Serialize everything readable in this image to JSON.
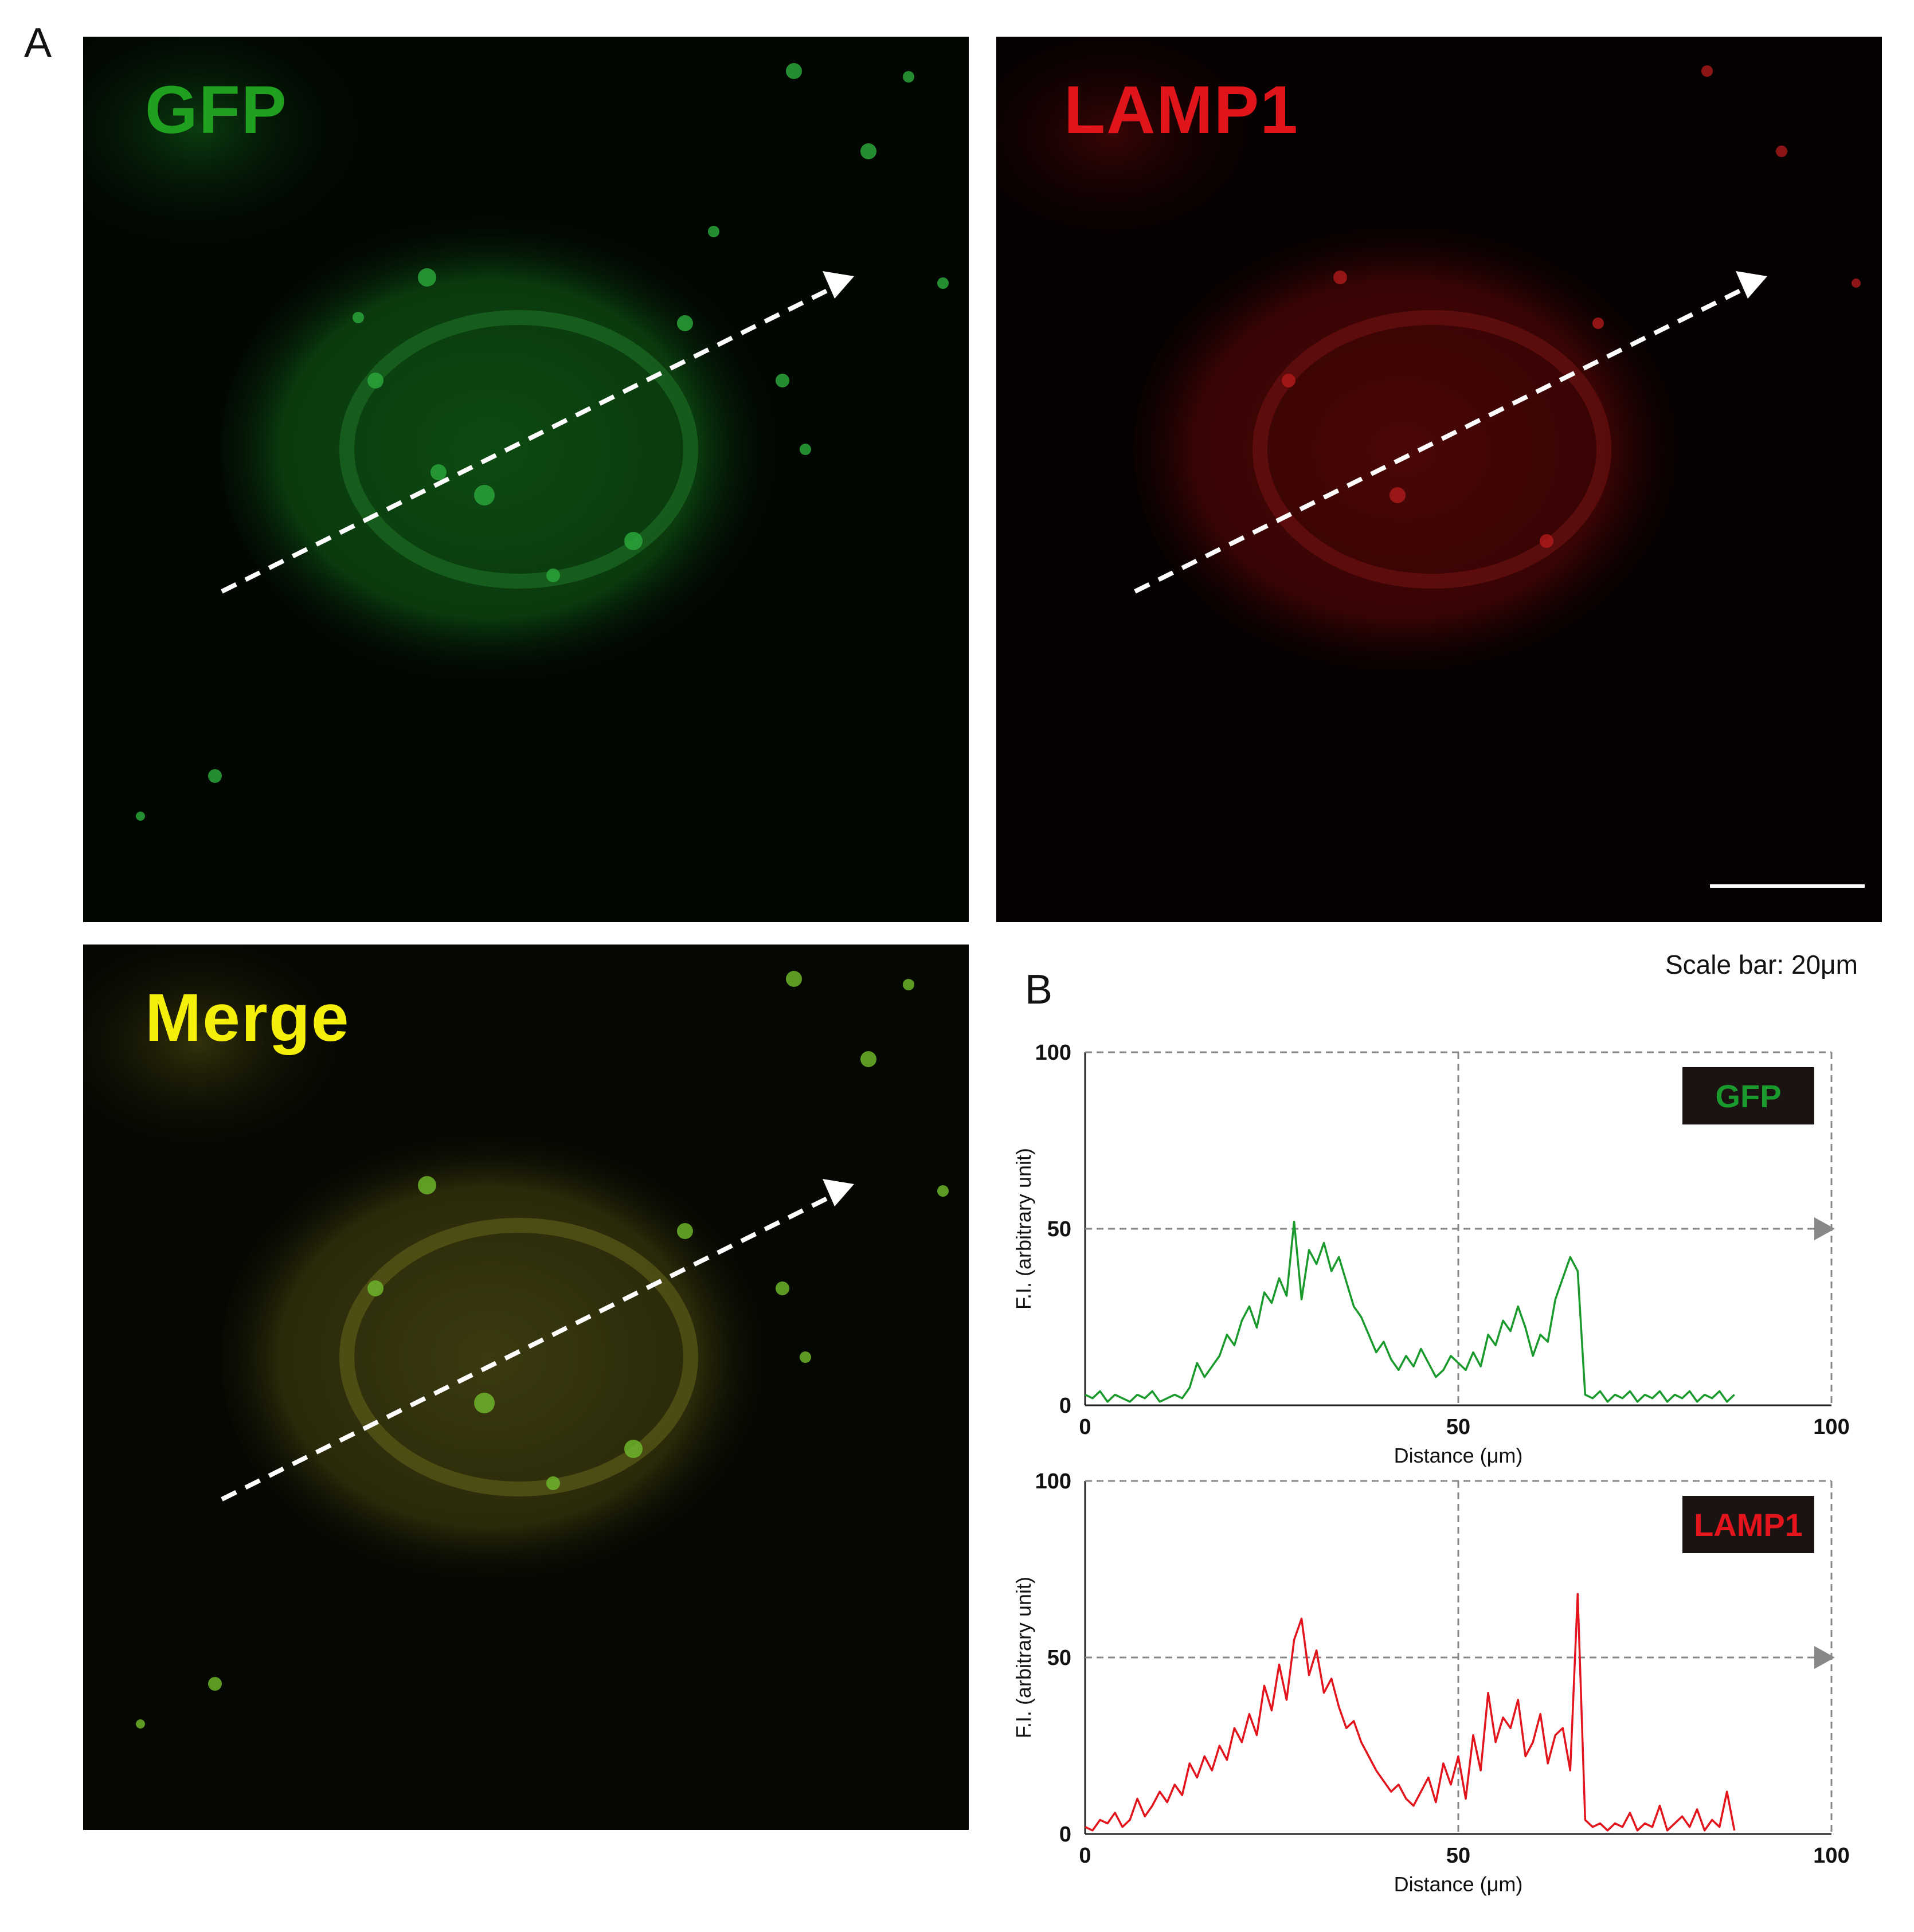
{
  "panel_labels": {
    "a": "A",
    "b": "B"
  },
  "images": {
    "gfp": {
      "label": "GFP",
      "label_color": "#1fa11f"
    },
    "lamp1": {
      "label": "LAMP1",
      "label_color": "#e0141b"
    },
    "merge": {
      "label": "Merge",
      "label_color": "#f5ee0a"
    }
  },
  "scale_bar_text": "Scale bar: 20μm",
  "chart_data": [
    {
      "type": "line",
      "title": "",
      "xlabel": "Distance (μm)",
      "ylabel": "F.I. (arbitrary unit)",
      "xlim": [
        0,
        100
      ],
      "ylim": [
        0,
        100
      ],
      "xticks": [
        "0",
        "50",
        "100"
      ],
      "yticks": [
        "0",
        "50",
        "100"
      ],
      "legend": "GFP",
      "color": "#1a9a2c",
      "series": [
        {
          "x": [
            0,
            1,
            2,
            3,
            4,
            5,
            6,
            7,
            8,
            9,
            10,
            11,
            12,
            13,
            14,
            15,
            16,
            17,
            18,
            19,
            20,
            21,
            22,
            23,
            24,
            25,
            26,
            27,
            28,
            29,
            30,
            31,
            32,
            33,
            34,
            35,
            36,
            37,
            38,
            39,
            40,
            41,
            42,
            43,
            44,
            45,
            46,
            47,
            48,
            49,
            50,
            51,
            52,
            53,
            54,
            55,
            56,
            57,
            58,
            59,
            60,
            61,
            62,
            63,
            64,
            65,
            66,
            67,
            68,
            69,
            70,
            71,
            72,
            73,
            74,
            75,
            76,
            77,
            78,
            79,
            80,
            81,
            82,
            83,
            84,
            85,
            86,
            87
          ],
          "values": [
            3,
            2,
            4,
            1,
            3,
            2,
            1,
            3,
            2,
            4,
            1,
            2,
            3,
            2,
            5,
            12,
            8,
            11,
            14,
            20,
            17,
            24,
            28,
            22,
            32,
            29,
            36,
            31,
            52,
            30,
            44,
            40,
            46,
            38,
            42,
            35,
            28,
            25,
            20,
            15,
            18,
            13,
            10,
            14,
            11,
            16,
            12,
            8,
            10,
            14,
            12,
            10,
            15,
            11,
            20,
            17,
            24,
            21,
            28,
            22,
            14,
            20,
            18,
            30,
            36,
            42,
            38,
            3,
            2,
            4,
            1,
            3,
            2,
            4,
            1,
            3,
            2,
            4,
            1,
            3,
            2,
            4,
            1,
            3,
            2,
            4,
            1,
            3
          ]
        }
      ]
    },
    {
      "type": "line",
      "title": "",
      "xlabel": "Distance (μm)",
      "ylabel": "F.I. (arbitrary unit)",
      "xlim": [
        0,
        100
      ],
      "ylim": [
        0,
        100
      ],
      "xticks": [
        "0",
        "50",
        "100"
      ],
      "yticks": [
        "0",
        "50",
        "100"
      ],
      "legend": "LAMP1",
      "color": "#e3141c",
      "series": [
        {
          "x": [
            0,
            1,
            2,
            3,
            4,
            5,
            6,
            7,
            8,
            9,
            10,
            11,
            12,
            13,
            14,
            15,
            16,
            17,
            18,
            19,
            20,
            21,
            22,
            23,
            24,
            25,
            26,
            27,
            28,
            29,
            30,
            31,
            32,
            33,
            34,
            35,
            36,
            37,
            38,
            39,
            40,
            41,
            42,
            43,
            44,
            45,
            46,
            47,
            48,
            49,
            50,
            51,
            52,
            53,
            54,
            55,
            56,
            57,
            58,
            59,
            60,
            61,
            62,
            63,
            64,
            65,
            66,
            67,
            68,
            69,
            70,
            71,
            72,
            73,
            74,
            75,
            76,
            77,
            78,
            79,
            80,
            81,
            82,
            83,
            84,
            85,
            86,
            87
          ],
          "values": [
            2,
            1,
            4,
            3,
            6,
            2,
            4,
            10,
            5,
            8,
            12,
            9,
            14,
            11,
            20,
            16,
            22,
            18,
            25,
            21,
            30,
            26,
            34,
            28,
            42,
            35,
            48,
            38,
            55,
            61,
            45,
            52,
            40,
            44,
            36,
            30,
            32,
            26,
            22,
            18,
            15,
            12,
            14,
            10,
            8,
            12,
            16,
            9,
            20,
            14,
            22,
            10,
            28,
            18,
            40,
            26,
            33,
            30,
            38,
            22,
            26,
            34,
            20,
            28,
            30,
            18,
            68,
            4,
            2,
            3,
            1,
            3,
            2,
            6,
            1,
            3,
            2,
            8,
            1,
            3,
            5,
            2,
            7,
            1,
            4,
            2,
            12,
            1
          ]
        }
      ]
    }
  ]
}
